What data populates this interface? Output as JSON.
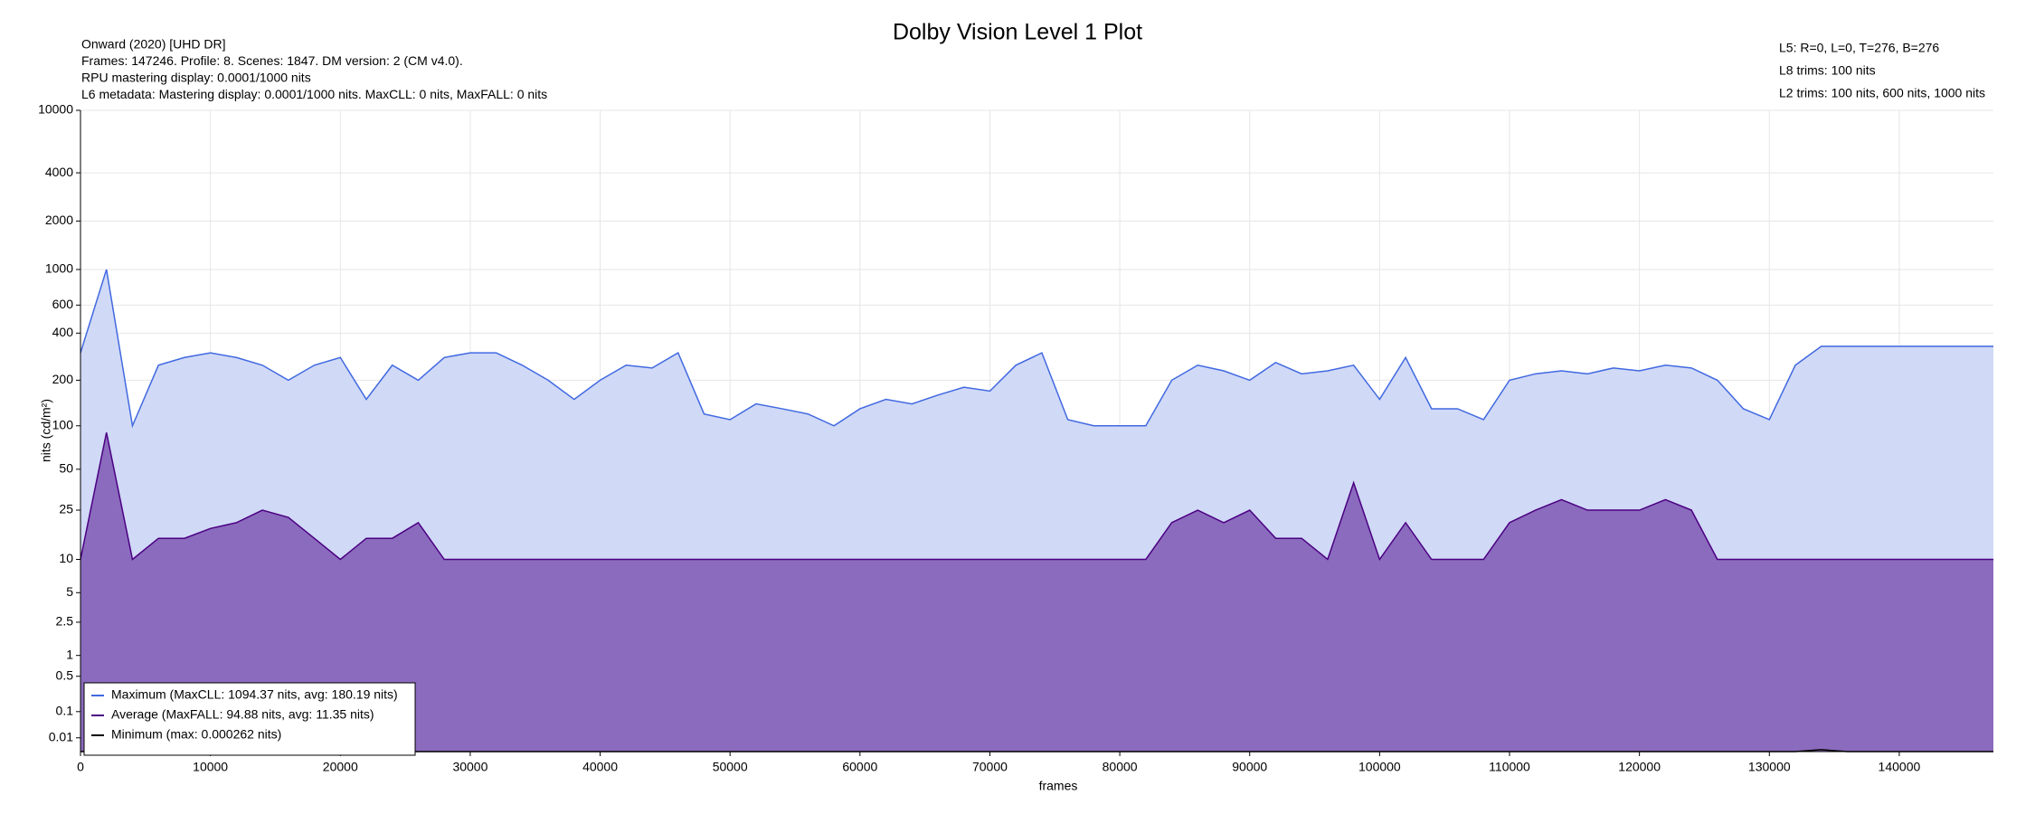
{
  "chart_data": {
    "type": "line",
    "title": "Dolby Vision Level 1 Plot",
    "info_left": [
      "Onward (2020) [UHD DR]",
      "Frames: 147246. Profile: 8. Scenes: 1847. DM version: 2 (CM v4.0).",
      "RPU mastering display: 0.0001/1000 nits",
      "L6 metadata: Mastering display: 0.0001/1000 nits. MaxCLL: 0 nits, MaxFALL: 0 nits"
    ],
    "info_right": [
      "L5: R=0, L=0, T=276, B=276",
      "L8 trims: 100 nits",
      "L2 trims: 100 nits, 600 nits, 1000 nits"
    ],
    "x_label": "frames",
    "y_label": "nits (cd/m²)",
    "yscale": "pq",
    "grid": true,
    "legend": "lower left",
    "xlim": [
      0,
      147246
    ],
    "xticks": [
      0,
      10000,
      20000,
      30000,
      40000,
      50000,
      60000,
      70000,
      80000,
      90000,
      100000,
      110000,
      120000,
      130000,
      140000
    ],
    "ylim": [
      0,
      10000
    ],
    "yticks": [
      0.01,
      0.1,
      0.5,
      1,
      2.5,
      5,
      10,
      25,
      50,
      100,
      200,
      400,
      600,
      1000,
      2000,
      4000,
      10000
    ],
    "x": [
      0,
      2000,
      4000,
      6000,
      8000,
      10000,
      12000,
      14000,
      16000,
      18000,
      20000,
      22000,
      24000,
      26000,
      28000,
      30000,
      32000,
      34000,
      36000,
      38000,
      40000,
      42000,
      44000,
      46000,
      48000,
      50000,
      52000,
      54000,
      56000,
      58000,
      60000,
      62000,
      64000,
      66000,
      68000,
      70000,
      72000,
      74000,
      76000,
      78000,
      80000,
      82000,
      84000,
      86000,
      88000,
      90000,
      92000,
      94000,
      96000,
      98000,
      100000,
      102000,
      104000,
      106000,
      108000,
      110000,
      112000,
      114000,
      116000,
      118000,
      120000,
      122000,
      124000,
      126000,
      128000,
      130000,
      132000,
      134000,
      136000,
      138000,
      140000,
      142000,
      144000,
      146000,
      147246
    ],
    "series": [
      {
        "name": "Maximum (MaxCLL: 1094.37 nits, avg: 180.19 nits)",
        "color": "#4169e1",
        "fill_color": "#d0d9f6",
        "values": [
          300,
          1000,
          100,
          250,
          280,
          300,
          280,
          250,
          200,
          250,
          280,
          150,
          250,
          200,
          280,
          300,
          300,
          250,
          200,
          150,
          200,
          250,
          240,
          300,
          120,
          110,
          140,
          130,
          120,
          100,
          130,
          150,
          140,
          160,
          180,
          170,
          250,
          300,
          110,
          100,
          100,
          100,
          200,
          250,
          230,
          200,
          260,
          220,
          230,
          250,
          150,
          280,
          130,
          130,
          110,
          200,
          220,
          230,
          220,
          240,
          230,
          250,
          240,
          200,
          130,
          110,
          250,
          330,
          330,
          330,
          330,
          330,
          330,
          330,
          330
        ]
      },
      {
        "name": "Average (MaxFALL: 94.88 nits, avg: 11.35 nits)",
        "color": "#4b0082",
        "fill_color": "#8b6bbd",
        "values": [
          10,
          90,
          10,
          15,
          15,
          18,
          20,
          25,
          22,
          15,
          10,
          15,
          15,
          20,
          10,
          10,
          10,
          10,
          10,
          10,
          10,
          10,
          10,
          10,
          10,
          10,
          10,
          10,
          10,
          10,
          10,
          10,
          10,
          10,
          10,
          10,
          10,
          10,
          10,
          10,
          10,
          10,
          20,
          25,
          20,
          25,
          15,
          15,
          10,
          40,
          10,
          20,
          10,
          10,
          10,
          20,
          25,
          30,
          25,
          25,
          25,
          30,
          25,
          10,
          10,
          10,
          10,
          10,
          10,
          10,
          10,
          10,
          10,
          10,
          10
        ]
      },
      {
        "name": "Minimum (max: 0.000262 nits)",
        "color": "#000000",
        "values": [
          0,
          0,
          0,
          0,
          0,
          0,
          0,
          0,
          0,
          0,
          0,
          0,
          0,
          0,
          0,
          0,
          0,
          0,
          0,
          0,
          0,
          0,
          0,
          0,
          0,
          0,
          0,
          0,
          0,
          0,
          0,
          0,
          0,
          0,
          0,
          0,
          0,
          0,
          0,
          0,
          0,
          0,
          0,
          0,
          0,
          0,
          0,
          0,
          0,
          0,
          0,
          0,
          0,
          0,
          0,
          0,
          0,
          0,
          0,
          0,
          0,
          0,
          0,
          0,
          0,
          0,
          0,
          0.000262,
          0,
          0,
          0,
          0,
          0,
          0,
          0
        ]
      }
    ]
  }
}
